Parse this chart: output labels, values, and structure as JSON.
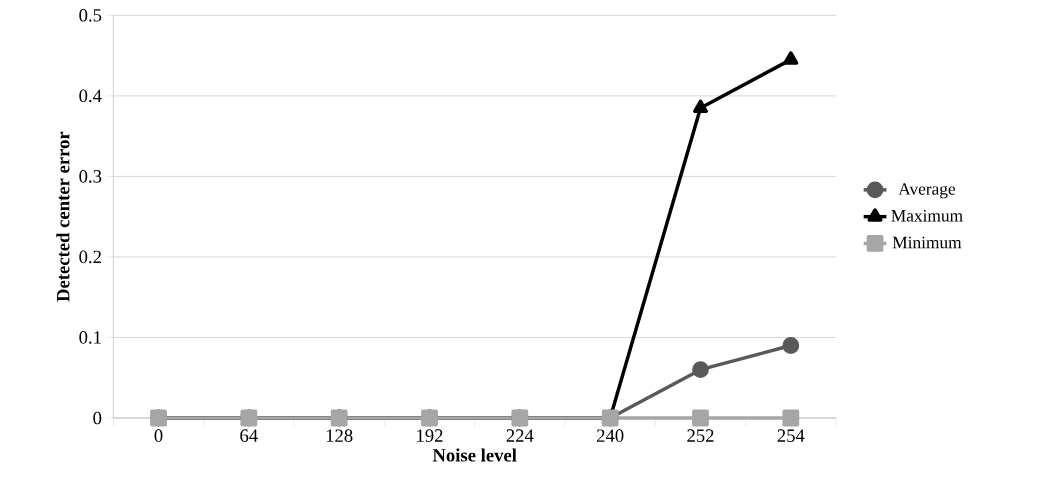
{
  "chart_data": {
    "type": "line",
    "xlabel": "Noise level",
    "ylabel": "Detected center error",
    "categories": [
      "0",
      "64",
      "128",
      "192",
      "224",
      "240",
      "252",
      "254"
    ],
    "series": [
      {
        "name": "Average",
        "color": "#595959",
        "marker": "circle",
        "values": [
          0,
          0,
          0,
          0,
          0,
          0,
          0.06,
          0.09
        ]
      },
      {
        "name": "Maximum",
        "color": "#000000",
        "marker": "triangle",
        "values": [
          0,
          0,
          0,
          0,
          0,
          0,
          0.385,
          0.445
        ]
      },
      {
        "name": "Minimum",
        "color": "#a6a6a6",
        "marker": "square",
        "values": [
          0,
          0,
          0,
          0,
          0,
          0,
          0,
          0
        ]
      }
    ],
    "ylim": [
      0,
      0.5
    ],
    "yticks": [
      0,
      0.1,
      0.2,
      0.3,
      0.4,
      0.5
    ],
    "grid": "y",
    "legend": "right"
  }
}
